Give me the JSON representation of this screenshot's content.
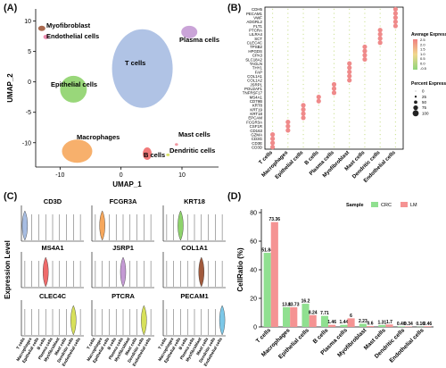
{
  "panels": {
    "A": "(A)",
    "B": "(B)",
    "C": "(C)",
    "D": "(D)"
  },
  "chart_data": [
    {
      "panel": "A",
      "type": "scatter",
      "xlabel": "UMAP_1",
      "ylabel": "UMAP_2",
      "xticks": [
        -10,
        0,
        10
      ],
      "yticks": [
        -10,
        -5,
        0,
        5,
        10
      ],
      "xlim": [
        -14,
        16
      ],
      "ylim": [
        -14,
        12
      ],
      "clusters": [
        {
          "label": "Myofibroblast",
          "color": "#a15a3c",
          "x": -12.3,
          "y": 9.3
        },
        {
          "label": "Endothelial cells",
          "color": "#ea7fa6",
          "x": -11.7,
          "y": 7.9
        },
        {
          "label": "Plasma cells",
          "color": "#c49ad4",
          "x": 12.6,
          "y": 9.8
        },
        {
          "label": "T cells",
          "color": "#a7bde2",
          "x": 3.3,
          "y": 3.3
        },
        {
          "label": "Epithelial cells",
          "color": "#8ed36c",
          "x": -7.8,
          "y": 1.5
        },
        {
          "label": "Macrophages",
          "color": "#f6a75c",
          "x": -6.4,
          "y": -8.9
        },
        {
          "label": "B cells",
          "color": "#ef6b6b",
          "x": 4.1,
          "y": -10.5
        },
        {
          "label": "Mast cells",
          "color": "#f08c96",
          "x": 9.3,
          "y": -8.6
        },
        {
          "label": "Dendritic cells",
          "color": "#d7e05a",
          "x": 8.0,
          "y": -10.6
        }
      ]
    },
    {
      "panel": "B",
      "type": "dotplot",
      "genes": [
        "CDH5",
        "PECAM1",
        "VWF",
        "ADGRL2",
        "FLT1",
        "PTCRA",
        "LILRA4",
        "SCT",
        "CLEC4C",
        "TPSB2",
        "HPGDS",
        "CPA3",
        "SLC18A2",
        "TAGLN",
        "THY1",
        "FAP",
        "COL1A1",
        "COL1A2",
        "JSRP1",
        "POU2AF1",
        "TNFRSF17",
        "MS4A1",
        "CD79B",
        "KRT8",
        "KRT19",
        "KRT18",
        "EPCAM",
        "FCGR3A",
        "CSF1R",
        "CD163",
        "GZMA",
        "CD3G",
        "CD3E",
        "CD3D"
      ],
      "cell_types": [
        "T cells",
        "Macrophages",
        "Epithelial cells",
        "B cells",
        "Plasma cells",
        "Myofibroblast",
        "Mast cells",
        "Dendritic cells",
        "Endothelial cells"
      ],
      "legend_expression_title": "Average Expression",
      "legend_expression_ticks": [
        "2.5",
        "2.0",
        "1.5",
        "1.0",
        "0.5",
        "0.0",
        "-0.5"
      ],
      "legend_percent_title": "Percent Expressed",
      "legend_percent_values": [
        "0",
        "25",
        "50",
        "75",
        "100"
      ]
    },
    {
      "panel": "C",
      "type": "violin",
      "ylabel": "Expression Level",
      "genes": [
        {
          "gene": "CD3D",
          "target": 0,
          "color": "#a7bde2"
        },
        {
          "gene": "FCGR3A",
          "target": 1,
          "color": "#f6a75c"
        },
        {
          "gene": "KRT18",
          "target": 2,
          "color": "#8ed36c"
        },
        {
          "gene": "MS4A1",
          "target": 3,
          "color": "#ef6b6b"
        },
        {
          "gene": "JSRP1",
          "target": 4,
          "color": "#c49ad4"
        },
        {
          "gene": "COL1A1",
          "target": 5,
          "color": "#a15a3c"
        },
        {
          "gene": "CLEC4C",
          "target": 7,
          "color": "#d7e05a"
        },
        {
          "gene": "PTCRA",
          "target": 7,
          "color": "#d7e05a"
        },
        {
          "gene": "PECAM1",
          "target": 8,
          "color": "#7cc8e8"
        }
      ],
      "categories": [
        "T cells",
        "Macrophages",
        "Epithelial cells",
        "B cells",
        "Plasma cells",
        "Myofibroblast",
        "Mast cells",
        "Dendritic cells",
        "Endothelial cells"
      ]
    },
    {
      "panel": "D",
      "type": "bar",
      "ylabel": "CellRatio (%)",
      "yticks": [
        0,
        20,
        40,
        60,
        80
      ],
      "ylim": [
        0,
        80
      ],
      "legend_title": "Sample",
      "categories": [
        "T cells",
        "Macrophages",
        "Epithelial cells",
        "B cells",
        "Plasma cells",
        "Myofibroblast",
        "Mast cells",
        "Dendritic cells",
        "Endothelial cells"
      ],
      "series": [
        {
          "name": "CRC",
          "color": "#90e090",
          "values": [
            51.84,
            13.8,
            16.2,
            7.71,
            1.44,
            2.23,
            1.31,
            0.4,
            0.16
          ]
        },
        {
          "name": "LM",
          "color": "#f59393",
          "values": [
            73.36,
            13.73,
            8.24,
            1.46,
            6,
            0.6,
            1.7,
            0.34,
            0.46
          ]
        }
      ],
      "value_labels": [
        [
          "51.84",
          "73.36"
        ],
        [
          "13.8",
          "13.73"
        ],
        [
          "16.2",
          "8.24"
        ],
        [
          "7.71",
          "1.46"
        ],
        [
          "1.44",
          "6"
        ],
        [
          "2.23",
          "0.6"
        ],
        [
          "1.31",
          "1.7"
        ],
        [
          "0.40",
          "0.34"
        ],
        [
          "0.16",
          "0.46"
        ]
      ]
    }
  ]
}
